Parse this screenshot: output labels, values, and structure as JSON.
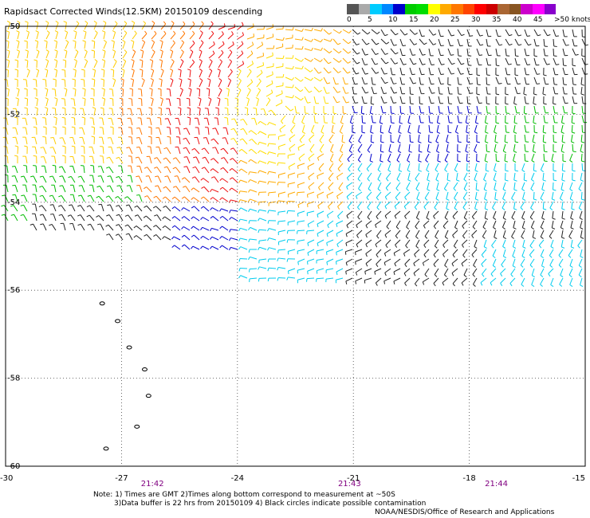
{
  "title": "Rapidsact Corrected Winds(12.5KM) 20150109 descending",
  "legend": {
    "colors": [
      "#555555",
      "#aaaaaa",
      "#00ccff",
      "#0088ff",
      "#0000cc",
      "#00cc00",
      "#00dd00",
      "#ffff00",
      "#ffaa00",
      "#ff7700",
      "#ff4400",
      "#ff0000",
      "#cc0000",
      "#aa6633",
      "#885522",
      "#cc00cc",
      "#ff00ff",
      "#8800cc"
    ],
    "labels": [
      "0",
      "5",
      "10",
      "15",
      "20",
      "25",
      "30",
      "35",
      "40",
      "45",
      ">50 knots"
    ]
  },
  "map": {
    "lon_ticks": [
      "-30",
      "-27",
      "-24",
      "-21",
      "-18",
      "-15"
    ],
    "lat_ticks": [
      "-50",
      "-52",
      "-54",
      "-56",
      "-58",
      "-60"
    ],
    "lon_range": [
      -30,
      -15
    ],
    "lat_range": [
      -50,
      -60
    ],
    "pass_times": [
      {
        "label": "21:42",
        "lon": -26.2
      },
      {
        "label": "21:43",
        "lon": -21.1
      },
      {
        "label": "21:44",
        "lon": -17.3
      }
    ],
    "islands": [
      {
        "lon": -27.5,
        "lat": -56.3
      },
      {
        "lon": -27.1,
        "lat": -56.7
      },
      {
        "lon": -26.8,
        "lat": -57.3
      },
      {
        "lon": -26.4,
        "lat": -57.8
      },
      {
        "lon": -26.3,
        "lat": -58.4
      },
      {
        "lon": -26.6,
        "lat": -59.1
      },
      {
        "lon": -27.4,
        "lat": -59.6
      }
    ]
  },
  "notes": [
    "Note: 1) Times are GMT 2)Times along bottom correspond to measurement at ~50S",
    "3)Data buffer is 22 hrs from 20150109 4) Black circles indicate possible contamination"
  ],
  "credit": "NOAA/NESDIS/Office of Research and Applications"
}
